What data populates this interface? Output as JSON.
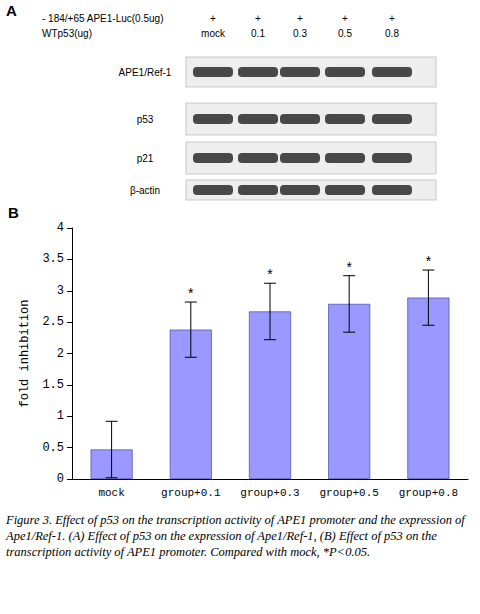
{
  "panel_a": {
    "label": "A",
    "header": [
      {
        "text": "- 184/+65 APE1-Luc(0.5ug)",
        "lanes": [
          "+",
          "+",
          "+",
          "+",
          "+"
        ]
      },
      {
        "text": "WTp53(ug)",
        "lanes": [
          "mock",
          "0.1",
          "0.3",
          "0.5",
          "0.8"
        ]
      }
    ],
    "rows": [
      "APE1/Ref-1",
      "p53",
      "p21",
      "β-actin"
    ]
  },
  "chart_data": {
    "type": "bar",
    "label": "B",
    "ylabel": "fold inhibition",
    "categories": [
      "mock",
      "group+0.1",
      "group+0.3",
      "group+0.5",
      "group+0.8"
    ],
    "values": [
      0.47,
      2.38,
      2.67,
      2.79,
      2.89
    ],
    "errors": [
      0.45,
      0.44,
      0.45,
      0.45,
      0.44
    ],
    "significance": [
      null,
      "*",
      "*",
      "*",
      "*"
    ],
    "color": "#9999ff",
    "ylim": [
      0,
      4
    ],
    "yticks": [
      0,
      0.5,
      1,
      1.5,
      2,
      2.5,
      3,
      3.5,
      4
    ],
    "grid": false
  },
  "caption": "Figure 3. Effect of p53 on the transcription activity of APE1 promoter and the expression of Ape1/Ref-1. (A) Effect of p53 on the expression of Ape1/Ref-1, (B) Effect of p53 on the transcription activity of APE1 promoter. Compared with mock, *P<0.05."
}
